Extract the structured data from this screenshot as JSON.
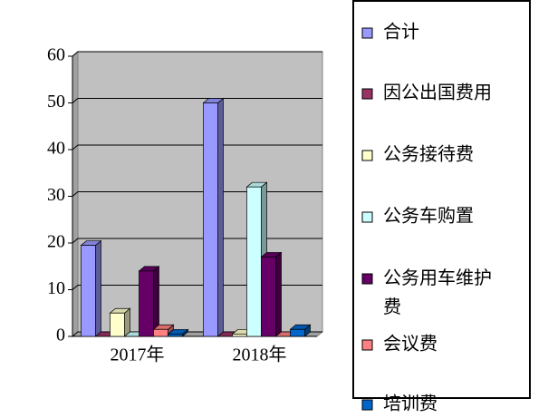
{
  "chart_data": {
    "type": "bar",
    "categories": [
      "2017年",
      "2018年"
    ],
    "series": [
      {
        "name": "合计",
        "color": "#9999ff",
        "values": [
          19.5,
          50
        ]
      },
      {
        "name": "因公出国费用",
        "color": "#993366",
        "values": [
          0,
          0
        ]
      },
      {
        "name": "公务接待费",
        "color": "#ffffcc",
        "values": [
          5,
          0.5
        ]
      },
      {
        "name": "公务车购置",
        "color": "#ccffff",
        "values": [
          0,
          32
        ]
      },
      {
        "name": "公务用车维护费",
        "color": "#660066",
        "values": [
          14,
          17
        ]
      },
      {
        "name": "会议费",
        "color": "#ff8080",
        "values": [
          1.5,
          0
        ]
      },
      {
        "name": "培训费",
        "color": "#0066cc",
        "values": [
          0.5,
          1.5
        ]
      }
    ],
    "ylim": [
      0,
      60
    ],
    "yticks": [
      0,
      10,
      20,
      30,
      40,
      50,
      60
    ],
    "grid": true,
    "legend": "right"
  }
}
